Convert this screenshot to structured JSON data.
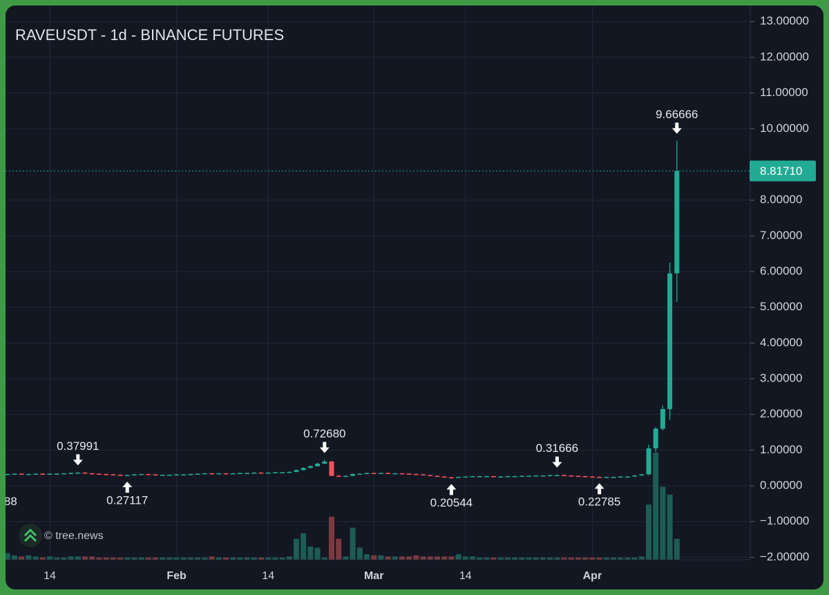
{
  "chart_data": {
    "type": "candlestick",
    "title": "RAVEUSDT - 1d - BINANCE FUTURES",
    "watermark": "© tree.news",
    "categories": [
      null,
      null,
      null,
      null,
      null,
      null,
      "14",
      null,
      null,
      null,
      null,
      null,
      null,
      null,
      null,
      null,
      null,
      null,
      null,
      null,
      null,
      null,
      null,
      null,
      "Feb",
      null,
      null,
      null,
      null,
      null,
      null,
      null,
      null,
      null,
      null,
      null,
      null,
      "14",
      null,
      null,
      null,
      null,
      null,
      null,
      null,
      null,
      null,
      null,
      null,
      null,
      null,
      null,
      "Mar",
      null,
      null,
      null,
      null,
      null,
      null,
      null,
      null,
      null,
      null,
      null,
      null,
      "14",
      null,
      null,
      null,
      null,
      null,
      null,
      null,
      null,
      null,
      null,
      null,
      null,
      null,
      null,
      null,
      null,
      null,
      "Apr",
      null,
      null,
      null,
      null,
      null,
      null,
      null,
      null,
      null,
      null,
      null,
      null
    ],
    "open": [
      0.33,
      0.33,
      0.34,
      0.33,
      0.33,
      0.34,
      0.33,
      0.34,
      0.34,
      0.35,
      0.36,
      0.37,
      0.35,
      0.34,
      0.33,
      0.32,
      0.31,
      0.3,
      0.3,
      0.32,
      0.33,
      0.32,
      0.31,
      0.31,
      0.31,
      0.32,
      0.32,
      0.33,
      0.34,
      0.35,
      0.34,
      0.35,
      0.34,
      0.35,
      0.36,
      0.36,
      0.37,
      0.36,
      0.37,
      0.38,
      0.38,
      0.39,
      0.44,
      0.5,
      0.55,
      0.62,
      0.68,
      0.28,
      0.27,
      0.28,
      0.33,
      0.34,
      0.36,
      0.35,
      0.36,
      0.35,
      0.35,
      0.34,
      0.33,
      0.32,
      0.3,
      0.28,
      0.26,
      0.24,
      0.23,
      0.25,
      0.26,
      0.27,
      0.27,
      0.27,
      0.26,
      0.26,
      0.27,
      0.27,
      0.28,
      0.28,
      0.29,
      0.29,
      0.3,
      0.3,
      0.29,
      0.28,
      0.27,
      0.26,
      0.25,
      0.24,
      0.25,
      0.25,
      0.26,
      0.26,
      0.29,
      0.32,
      1.05,
      1.6,
      2.15,
      5.95
    ],
    "high": [
      0.34,
      0.35,
      0.35,
      0.34,
      0.35,
      0.35,
      0.35,
      0.35,
      0.36,
      0.37,
      0.37991,
      0.38,
      0.36,
      0.35,
      0.34,
      0.33,
      0.32,
      0.31,
      0.33,
      0.34,
      0.34,
      0.33,
      0.32,
      0.32,
      0.33,
      0.33,
      0.34,
      0.35,
      0.36,
      0.36,
      0.36,
      0.36,
      0.36,
      0.37,
      0.37,
      0.38,
      0.38,
      0.38,
      0.39,
      0.39,
      0.4,
      0.46,
      0.52,
      0.57,
      0.65,
      0.7268,
      0.7,
      0.3,
      0.29,
      0.34,
      0.35,
      0.37,
      0.37,
      0.37,
      0.37,
      0.36,
      0.36,
      0.35,
      0.34,
      0.33,
      0.31,
      0.29,
      0.27,
      0.25,
      0.26,
      0.27,
      0.28,
      0.28,
      0.28,
      0.28,
      0.27,
      0.28,
      0.28,
      0.29,
      0.29,
      0.3,
      0.3,
      0.31,
      0.31666,
      0.31,
      0.3,
      0.29,
      0.28,
      0.27,
      0.26,
      0.26,
      0.26,
      0.27,
      0.27,
      0.3,
      0.33,
      1.15,
      1.65,
      2.25,
      6.25,
      9.66666
    ],
    "low": [
      0.32,
      0.32,
      0.32,
      0.32,
      0.32,
      0.32,
      0.32,
      0.33,
      0.33,
      0.34,
      0.35,
      0.34,
      0.33,
      0.32,
      0.31,
      0.3,
      0.29,
      0.27117,
      0.29,
      0.31,
      0.31,
      0.3,
      0.3,
      0.3,
      0.3,
      0.31,
      0.31,
      0.32,
      0.33,
      0.33,
      0.33,
      0.33,
      0.33,
      0.34,
      0.35,
      0.35,
      0.35,
      0.35,
      0.36,
      0.37,
      0.37,
      0.38,
      0.43,
      0.49,
      0.54,
      0.61,
      0.27,
      0.26,
      0.26,
      0.27,
      0.32,
      0.33,
      0.34,
      0.34,
      0.34,
      0.34,
      0.33,
      0.32,
      0.31,
      0.29,
      0.27,
      0.25,
      0.23,
      0.20544,
      0.22,
      0.24,
      0.25,
      0.26,
      0.26,
      0.25,
      0.25,
      0.25,
      0.26,
      0.26,
      0.27,
      0.27,
      0.28,
      0.28,
      0.29,
      0.28,
      0.27,
      0.26,
      0.25,
      0.24,
      0.22785,
      0.23,
      0.24,
      0.24,
      0.25,
      0.25,
      0.28,
      0.3,
      0.95,
      1.55,
      1.85,
      5.15
    ],
    "close": [
      0.33,
      0.34,
      0.33,
      0.33,
      0.34,
      0.33,
      0.34,
      0.34,
      0.35,
      0.36,
      0.37,
      0.35,
      0.34,
      0.33,
      0.32,
      0.31,
      0.3,
      0.3,
      0.32,
      0.33,
      0.32,
      0.31,
      0.31,
      0.31,
      0.32,
      0.32,
      0.33,
      0.34,
      0.35,
      0.34,
      0.35,
      0.34,
      0.35,
      0.36,
      0.36,
      0.37,
      0.36,
      0.37,
      0.38,
      0.38,
      0.39,
      0.44,
      0.5,
      0.55,
      0.62,
      0.68,
      0.28,
      0.27,
      0.28,
      0.33,
      0.34,
      0.36,
      0.35,
      0.36,
      0.35,
      0.35,
      0.34,
      0.33,
      0.32,
      0.3,
      0.28,
      0.26,
      0.24,
      0.23,
      0.25,
      0.26,
      0.27,
      0.27,
      0.27,
      0.26,
      0.26,
      0.27,
      0.27,
      0.28,
      0.28,
      0.29,
      0.29,
      0.3,
      0.3,
      0.29,
      0.28,
      0.27,
      0.26,
      0.25,
      0.24,
      0.25,
      0.25,
      0.26,
      0.26,
      0.29,
      0.32,
      1.05,
      1.6,
      2.15,
      5.95,
      8.8171
    ],
    "volume": [
      6,
      4,
      3,
      4,
      3,
      2,
      3,
      2,
      2,
      3,
      3,
      3,
      3,
      2,
      2,
      2,
      2,
      2,
      2,
      2,
      2,
      2,
      2,
      2,
      2,
      2,
      2,
      2,
      2,
      3,
      2,
      2,
      2,
      2,
      2,
      2,
      2,
      2,
      2,
      2,
      3,
      19,
      24,
      12,
      11,
      2,
      39,
      19,
      3,
      29,
      11,
      5,
      4,
      4,
      3,
      3,
      3,
      3,
      4,
      3,
      3,
      3,
      3,
      3,
      5,
      3,
      3,
      2,
      2,
      2,
      2,
      2,
      2,
      2,
      2,
      2,
      2,
      2,
      2,
      2,
      2,
      2,
      2,
      2,
      2,
      2,
      2,
      2,
      2,
      2,
      3,
      50,
      97,
      66,
      59,
      19
    ],
    "up_color": "#22ab94",
    "down_color": "#f7525f",
    "volume_up_color": "#1d5c57",
    "volume_down_color": "#7b3a41",
    "ylim": [
      -2.07,
      13.45
    ],
    "yticks": [
      {
        "value": 13,
        "label": "13.00000"
      },
      {
        "value": 12,
        "label": "12.00000"
      },
      {
        "value": 11,
        "label": "11.00000"
      },
      {
        "value": 10,
        "label": "10.00000"
      },
      {
        "value": 8,
        "label": "8.00000"
      },
      {
        "value": 7,
        "label": "7.00000"
      },
      {
        "value": 6,
        "label": "6.00000"
      },
      {
        "value": 5,
        "label": "5.00000"
      },
      {
        "value": 4,
        "label": "4.00000"
      },
      {
        "value": 3,
        "label": "3.00000"
      },
      {
        "value": 2,
        "label": "2.00000"
      },
      {
        "value": 1,
        "label": "1.00000"
      },
      {
        "value": 0,
        "label": "0.00000"
      },
      {
        "value": -1,
        "label": "−1.00000"
      },
      {
        "value": -2,
        "label": "−2.00000"
      }
    ],
    "last_price": {
      "value": 8.8171,
      "label": "8.81710"
    },
    "grid": true,
    "annotations": [
      {
        "index": 10,
        "value": 0.37991,
        "label": "0.37991",
        "position": "above"
      },
      {
        "index": 17,
        "value": 0.27117,
        "label": "0.27117",
        "position": "below"
      },
      {
        "index": 45,
        "value": 0.7268,
        "label": "0.72680",
        "position": "above"
      },
      {
        "index": 63,
        "value": 0.20544,
        "label": "0.20544",
        "position": "below"
      },
      {
        "index": 78,
        "value": 0.31666,
        "label": "0.31666",
        "position": "above"
      },
      {
        "index": 84,
        "value": 0.22785,
        "label": "0.22785",
        "position": "below"
      },
      {
        "index": 95,
        "value": 9.66666,
        "label": "9.66666",
        "position": "above"
      },
      {
        "index": 0,
        "label": "88",
        "position": "below"
      }
    ]
  }
}
